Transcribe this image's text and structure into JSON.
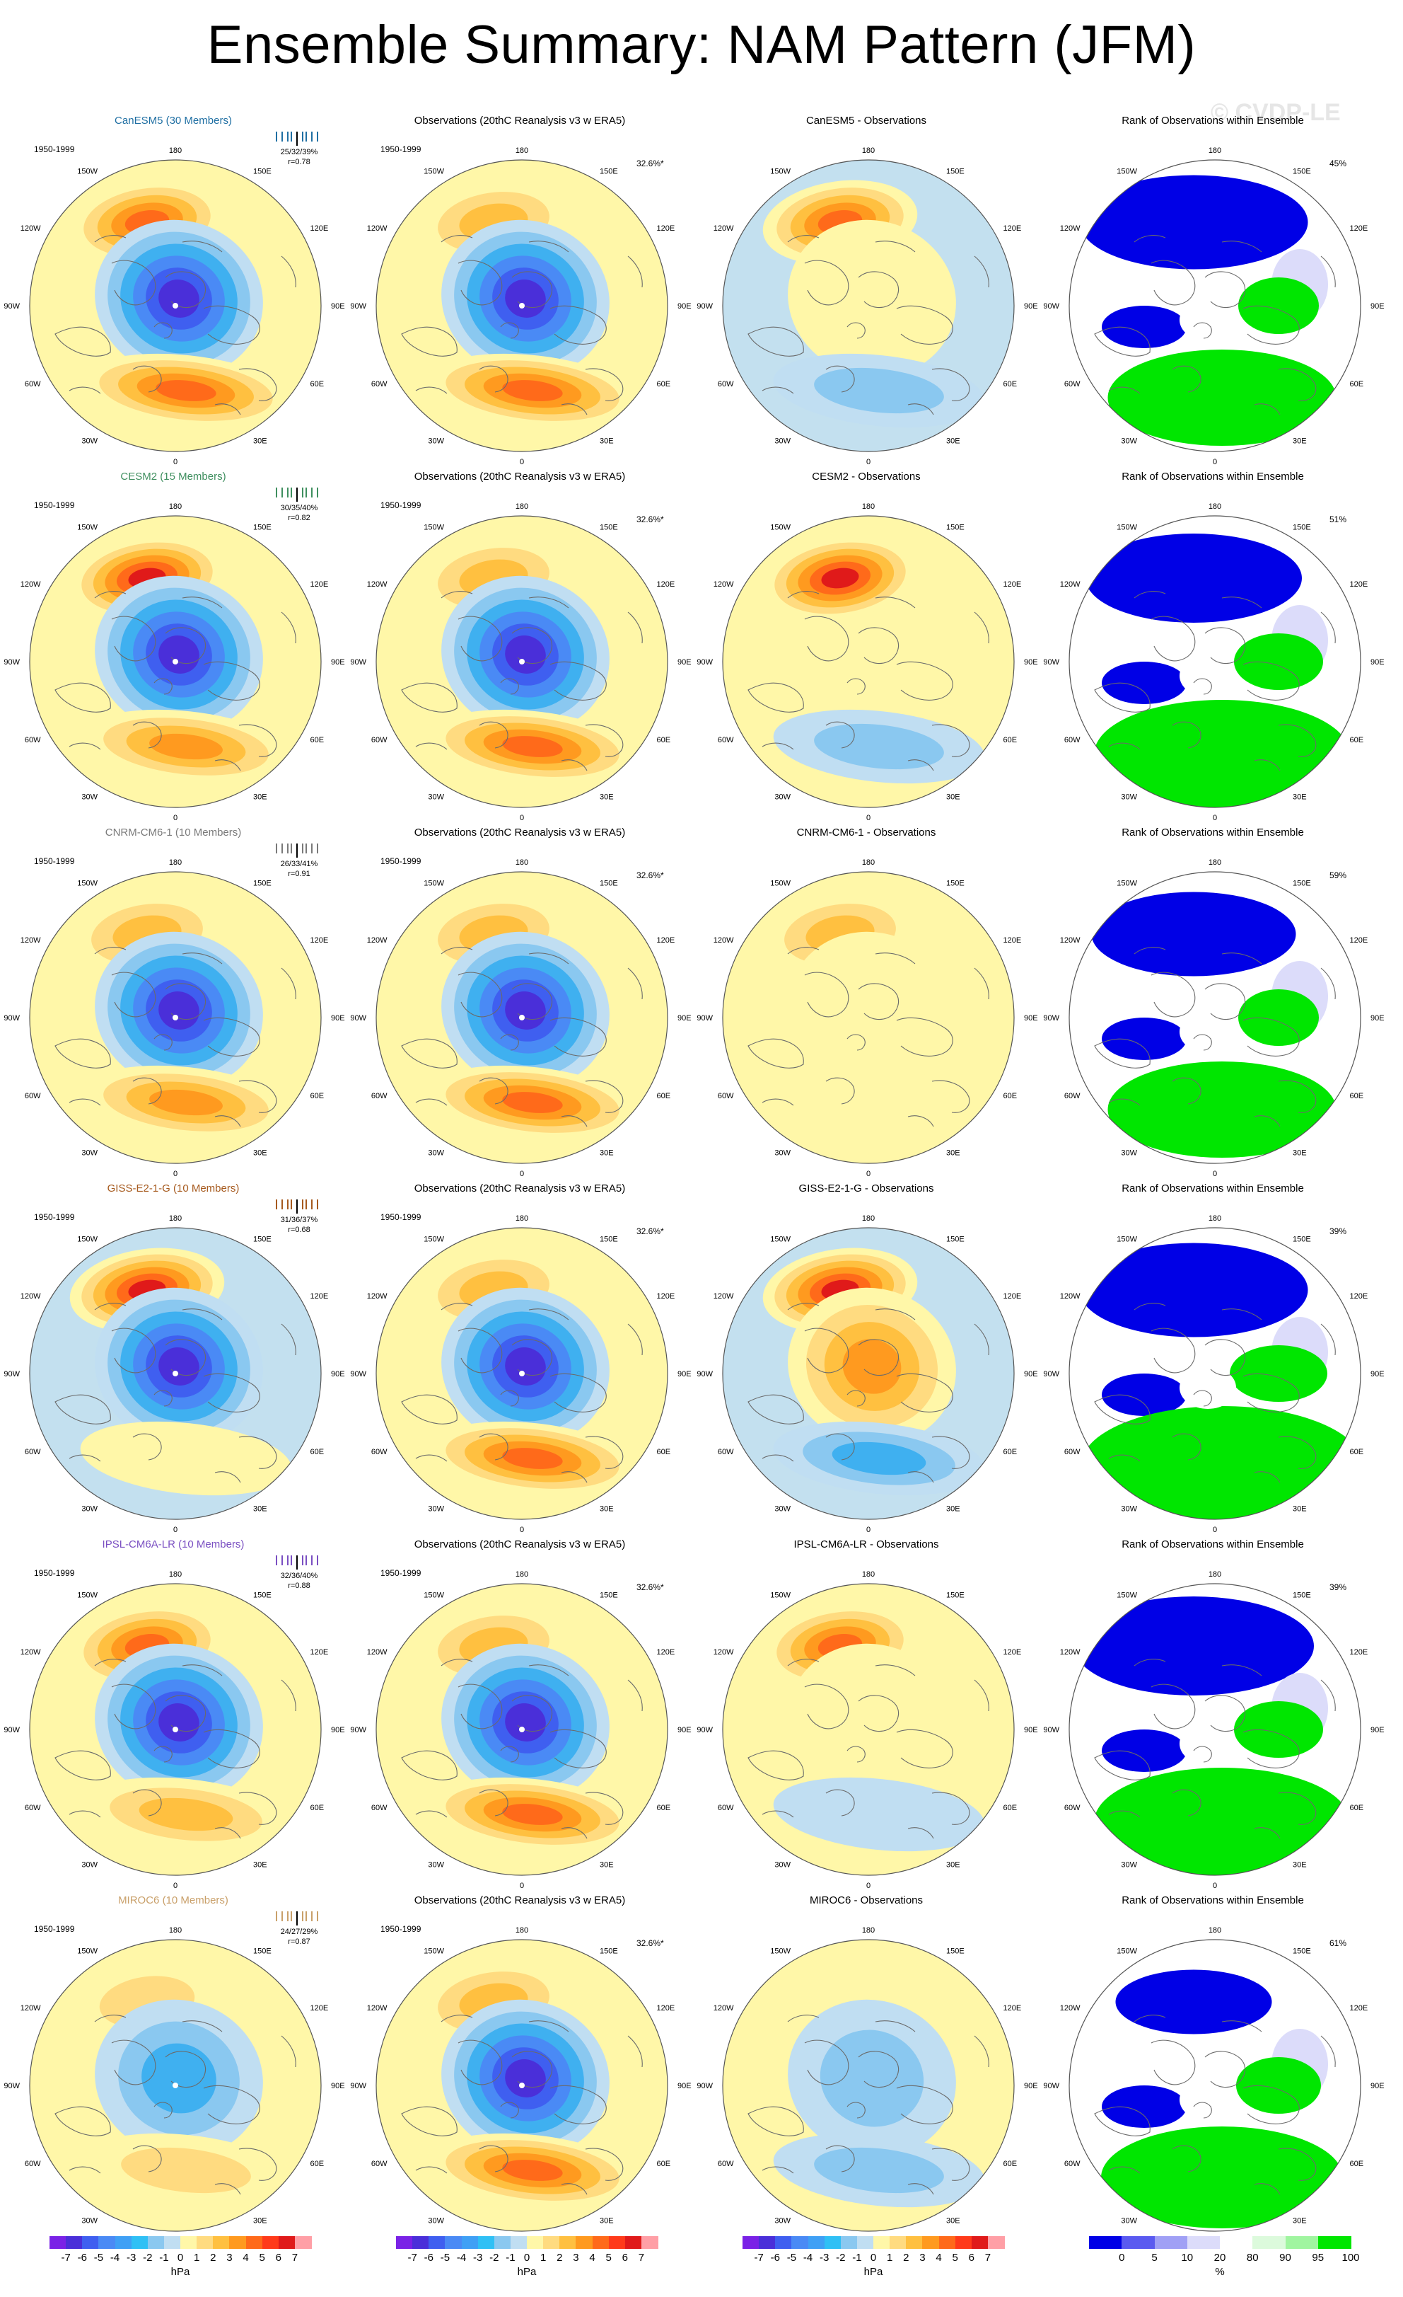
{
  "title": "Ensemble Summary: NAM Pattern (JFM)",
  "watermark": "© CVDP-LE",
  "longitude_labels": [
    "180",
    "150E",
    "120E",
    "90E",
    "60E",
    "30E",
    "0",
    "30W",
    "60W",
    "90W",
    "120W",
    "150W"
  ],
  "rows": [
    {
      "model": "CanESM5 (30 Members)",
      "model_color": "#1f6fa3",
      "stats": [
        "25/32/39%",
        "r=0.78"
      ],
      "period": "1950-1999",
      "obs_pct": "32.6%*",
      "diff_title": "CanESM5 - Observations",
      "rank_pct": "45%",
      "pattern": {
        "low": 1.0,
        "pac": 0.85,
        "atl": 0.75,
        "off": 0.0
      },
      "diff": {
        "low": -0.1,
        "pac": 0.85,
        "atl": -0.35,
        "off": 0.35
      },
      "rank": {
        "blue": 0.45,
        "green": 0.35
      }
    },
    {
      "model": "CESM2 (15 Members)",
      "model_color": "#3f8f5f",
      "stats": [
        "30/35/40%",
        "r=0.82"
      ],
      "period": "1950-1999",
      "obs_pct": "32.6%*",
      "diff_title": "CESM2 - Observations",
      "rank_pct": "51%",
      "pattern": {
        "low": 0.95,
        "pac": 1.05,
        "atl": 0.65,
        "off": 0.0
      },
      "diff": {
        "low": 0.0,
        "pac": 1.0,
        "atl": -0.3,
        "off": 0.0
      },
      "rank": {
        "blue": 0.4,
        "green": 0.45
      }
    },
    {
      "model": "CNRM-CM6-1 (10 Members)",
      "model_color": "#7a7a7a",
      "stats": [
        "26/33/41%",
        "r=0.91"
      ],
      "period": "1950-1999",
      "obs_pct": "32.6%*",
      "diff_title": "CNRM-CM6-1 - Observations",
      "rank_pct": "59%",
      "pattern": {
        "low": 1.0,
        "pac": 0.55,
        "atl": 0.7,
        "off": 0.0
      },
      "diff": {
        "low": -0.2,
        "pac": 0.55,
        "atl": 0.2,
        "off": 0.0
      },
      "rank": {
        "blue": 0.35,
        "green": 0.35
      }
    },
    {
      "model": "GISS-E2-1-G (10 Members)",
      "model_color": "#a65a1e",
      "stats": [
        "31/36/37%",
        "r=0.68"
      ],
      "period": "1950-1999",
      "obs_pct": "32.6%*",
      "diff_title": "GISS-E2-1-G - Observations",
      "rank_pct": "39%",
      "pattern": {
        "low": 1.1,
        "pac": 1.05,
        "atl": 0.2,
        "off": 0.25
      },
      "diff": {
        "low": -0.6,
        "pac": 1.1,
        "atl": -0.5,
        "off": 0.25
      },
      "rank": {
        "blue": 0.45,
        "green": 0.55
      }
    },
    {
      "model": "IPSL-CM6A-LR (10 Members)",
      "model_color": "#7a4fc2",
      "stats": [
        "32/36/40%",
        "r=0.88"
      ],
      "period": "1950-1999",
      "obs_pct": "32.6%*",
      "diff_title": "IPSL-CM6A-LR - Observations",
      "rank_pct": "39%",
      "pattern": {
        "low": 1.0,
        "pac": 0.8,
        "atl": 0.55,
        "off": 0.0
      },
      "diff": {
        "low": -0.15,
        "pac": 0.8,
        "atl": -0.2,
        "off": 0.0
      },
      "rank": {
        "blue": 0.5,
        "green": 0.45
      }
    },
    {
      "model": "MIROC6 (10 Members)",
      "model_color": "#c9a06a",
      "stats": [
        "24/27/29%",
        "r=0.87"
      ],
      "period": "1950-1999",
      "obs_pct": "32.6%*",
      "diff_title": "MIROC6 - Observations",
      "rank_pct": "61%",
      "pattern": {
        "low": 0.55,
        "pac": 0.3,
        "atl": 0.4,
        "off": 0.0
      },
      "diff": {
        "low": 0.4,
        "pac": 0.2,
        "atl": -0.35,
        "off": 0.0
      },
      "rank": {
        "blue": 0.15,
        "green": 0.4
      }
    }
  ],
  "observations": {
    "title": "Observations (20thC Reanalysis v3 w ERA5)",
    "pattern": {
      "low": 1.0,
      "pac": 0.5,
      "atl": 0.85,
      "off": 0.0
    }
  },
  "rank_title": "Rank of Observations within Ensemble",
  "colorbar_hpa": {
    "labels": [
      "-7",
      "-6",
      "-5",
      "-4",
      "-3",
      "-2",
      "-1",
      "0",
      "1",
      "2",
      "3",
      "4",
      "5",
      "6",
      "7"
    ],
    "unit": "hPa",
    "colors": [
      "#7a22e6",
      "#4a2fd9",
      "#3f5ff0",
      "#4a8af5",
      "#3fa0f5",
      "#2fc0f5",
      "#8ac8f0",
      "#c0def2",
      "#fff7a8",
      "#ffdb80",
      "#ffc040",
      "#ff9a1f",
      "#ff6a1a",
      "#ff3a1a",
      "#e01a1a",
      "#ff9fa6"
    ]
  },
  "colorbar_rank": {
    "labels": [
      "0",
      "5",
      "10",
      "20",
      "80",
      "90",
      "95",
      "100"
    ],
    "unit": "%",
    "colors": [
      "#0000e6",
      "#5a5af0",
      "#a0a0f5",
      "#dcdcfa",
      "#ffffff",
      "#dcfadc",
      "#a0f5a0",
      "#00e600"
    ]
  }
}
